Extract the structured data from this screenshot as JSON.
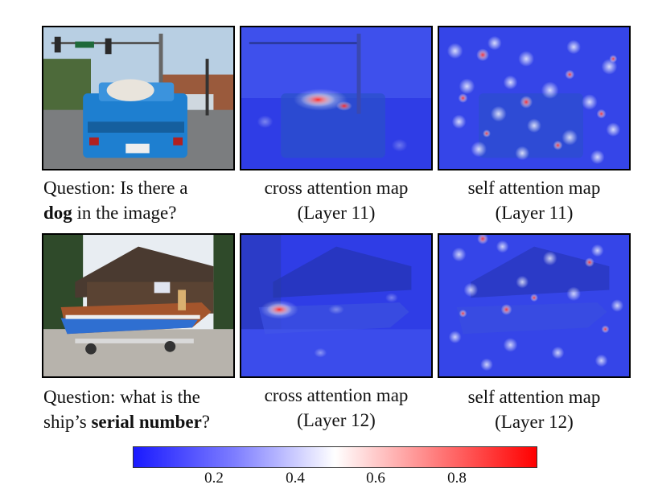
{
  "row1": {
    "question_prefix": "Question: Is there a",
    "question_bold": "dog",
    "question_suffix": "in the image?",
    "cross_line1": "cross attention map",
    "cross_line2": "(Layer 11)",
    "self_line1": "self attention map",
    "self_line2": "(Layer 11)"
  },
  "row2": {
    "question_line1": "Question: what is the",
    "question_prefix2": "ship’s",
    "question_bold": "serial number",
    "question_suffix": "?",
    "cross_line1": "cross attention map",
    "cross_line2": "(Layer 12)",
    "self_line1": "self attention map",
    "self_line2": "(Layer 12)"
  },
  "colorbar": {
    "ticks": [
      "0.2",
      "0.4",
      "0.6",
      "0.8"
    ],
    "colors": [
      "#1a1aff",
      "#ffffff",
      "#ff0000"
    ]
  }
}
